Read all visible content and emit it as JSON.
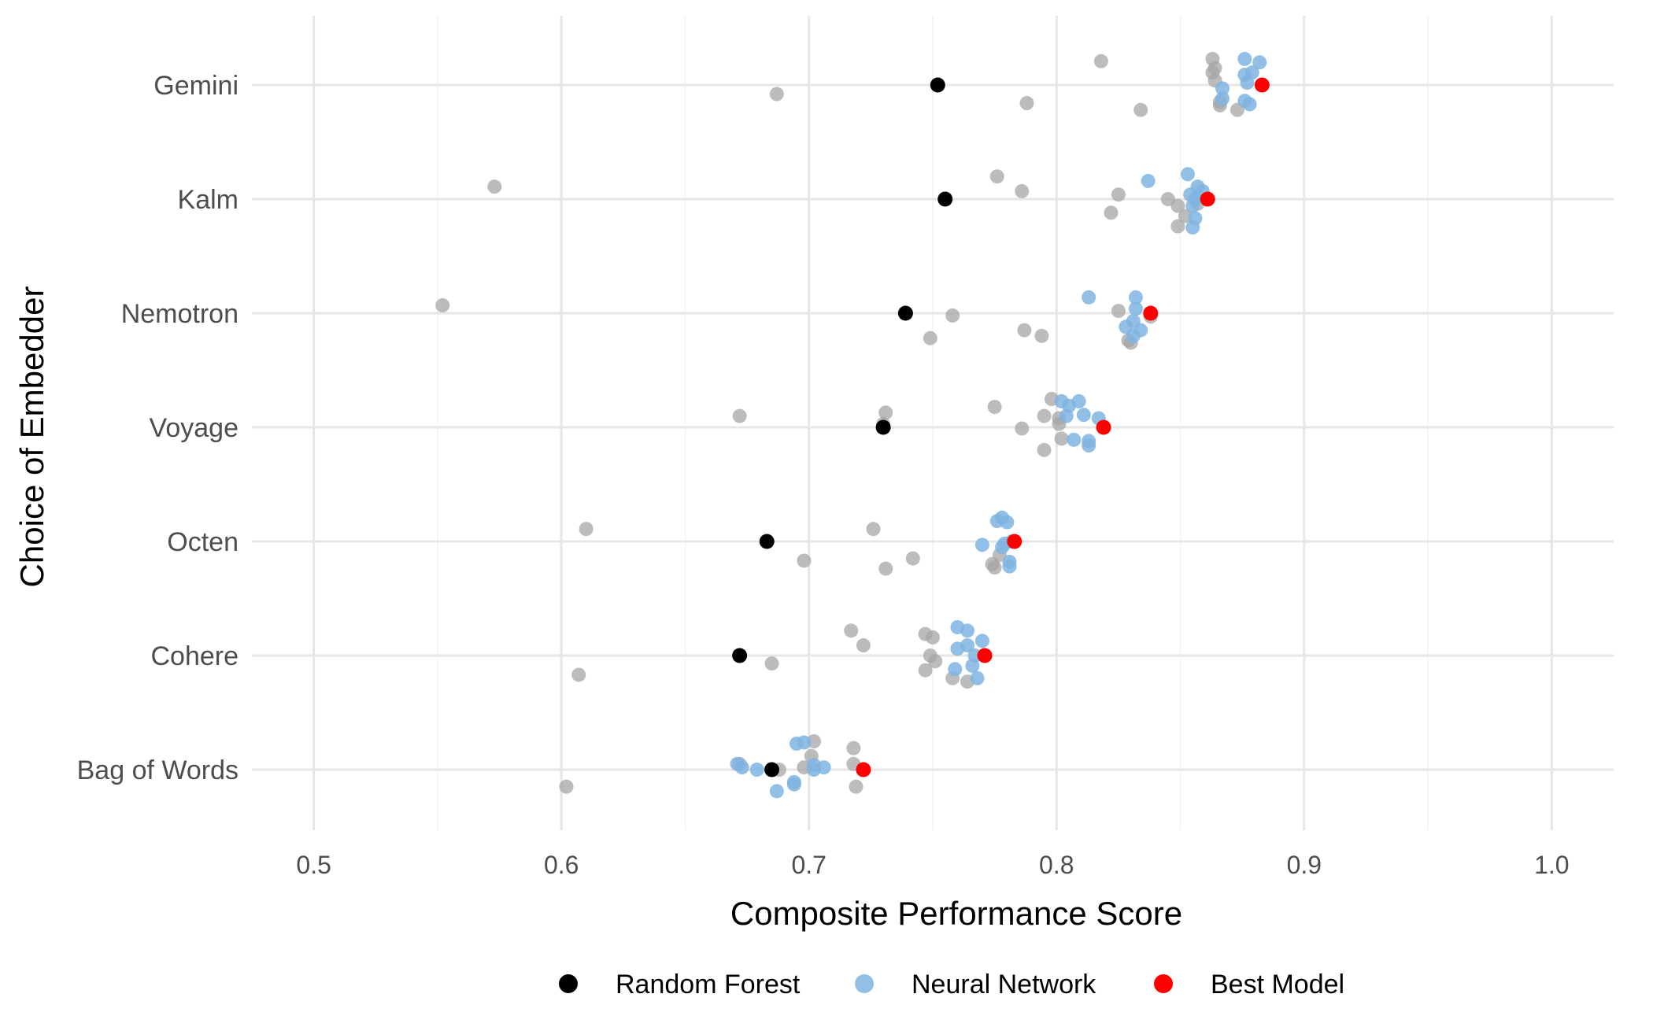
{
  "chart_data": {
    "type": "scatter",
    "orientation": "horizontal",
    "title": "",
    "xlabel": "Composite Performance Score",
    "ylabel": "Choice of Embedder",
    "xlim": [
      0.475,
      1.025
    ],
    "xticks": [
      0.5,
      0.6,
      0.7,
      0.8,
      0.9,
      1.0
    ],
    "xtick_labels": [
      "0.5",
      "0.6",
      "0.7",
      "0.8",
      "0.9",
      "1.0"
    ],
    "categories": [
      "Gemini",
      "Kalm",
      "Nemotron",
      "Voyage",
      "Octen",
      "Cohere",
      "Bag of Words"
    ],
    "grid": true,
    "legend_position": "bottom",
    "legend": [
      {
        "label": "Random Forest",
        "color": "#000000"
      },
      {
        "label": "Neural Network",
        "color": "#7fb4e0"
      },
      {
        "label": "Best Model",
        "color": "#ff0000"
      }
    ],
    "colors": {
      "other": "#a6a6a6",
      "random_forest": "#000000",
      "neural_network": "#7fb4e0",
      "best_model": "#ff0000"
    },
    "series": [
      {
        "group": "other",
        "points": [
          {
            "y": "Gemini",
            "x": 0.687,
            "j": 0.08
          },
          {
            "y": "Gemini",
            "x": 0.788,
            "j": 0.16
          },
          {
            "y": "Gemini",
            "x": 0.818,
            "j": -0.21
          },
          {
            "y": "Gemini",
            "x": 0.834,
            "j": 0.22
          },
          {
            "y": "Gemini",
            "x": 0.863,
            "j": -0.23
          },
          {
            "y": "Gemini",
            "x": 0.864,
            "j": -0.15
          },
          {
            "y": "Gemini",
            "x": 0.863,
            "j": -0.11
          },
          {
            "y": "Gemini",
            "x": 0.864,
            "j": -0.04
          },
          {
            "y": "Gemini",
            "x": 0.866,
            "j": 0.15
          },
          {
            "y": "Gemini",
            "x": 0.866,
            "j": 0.18
          },
          {
            "y": "Gemini",
            "x": 0.873,
            "j": 0.22
          },
          {
            "y": "Kalm",
            "x": 0.573,
            "j": -0.11
          },
          {
            "y": "Kalm",
            "x": 0.776,
            "j": -0.2
          },
          {
            "y": "Kalm",
            "x": 0.786,
            "j": -0.07
          },
          {
            "y": "Kalm",
            "x": 0.825,
            "j": -0.04
          },
          {
            "y": "Kalm",
            "x": 0.822,
            "j": 0.12
          },
          {
            "y": "Kalm",
            "x": 0.845,
            "j": 0.0
          },
          {
            "y": "Kalm",
            "x": 0.849,
            "j": 0.06
          },
          {
            "y": "Kalm",
            "x": 0.852,
            "j": 0.15
          },
          {
            "y": "Kalm",
            "x": 0.849,
            "j": 0.24
          },
          {
            "y": "Kalm",
            "x": 0.857,
            "j": 0.04
          },
          {
            "y": "Nemotron",
            "x": 0.552,
            "j": -0.07
          },
          {
            "y": "Nemotron",
            "x": 0.758,
            "j": 0.02
          },
          {
            "y": "Nemotron",
            "x": 0.749,
            "j": 0.22
          },
          {
            "y": "Nemotron",
            "x": 0.787,
            "j": 0.15
          },
          {
            "y": "Nemotron",
            "x": 0.794,
            "j": 0.2
          },
          {
            "y": "Nemotron",
            "x": 0.825,
            "j": -0.02
          },
          {
            "y": "Nemotron",
            "x": 0.829,
            "j": 0.24
          },
          {
            "y": "Nemotron",
            "x": 0.83,
            "j": 0.26
          },
          {
            "y": "Nemotron",
            "x": 0.838,
            "j": 0.03
          },
          {
            "y": "Voyage",
            "x": 0.672,
            "j": -0.1
          },
          {
            "y": "Voyage",
            "x": 0.731,
            "j": -0.13
          },
          {
            "y": "Voyage",
            "x": 0.775,
            "j": -0.18
          },
          {
            "y": "Voyage",
            "x": 0.786,
            "j": 0.01
          },
          {
            "y": "Voyage",
            "x": 0.798,
            "j": -0.25
          },
          {
            "y": "Voyage",
            "x": 0.795,
            "j": -0.1
          },
          {
            "y": "Voyage",
            "x": 0.801,
            "j": -0.08
          },
          {
            "y": "Voyage",
            "x": 0.801,
            "j": -0.03
          },
          {
            "y": "Voyage",
            "x": 0.802,
            "j": 0.1
          },
          {
            "y": "Voyage",
            "x": 0.795,
            "j": 0.2
          },
          {
            "y": "Voyage",
            "x": 0.73,
            "j": -0.03
          },
          {
            "y": "Octen",
            "x": 0.61,
            "j": -0.11
          },
          {
            "y": "Octen",
            "x": 0.726,
            "j": -0.11
          },
          {
            "y": "Octen",
            "x": 0.698,
            "j": 0.17
          },
          {
            "y": "Octen",
            "x": 0.731,
            "j": 0.24
          },
          {
            "y": "Octen",
            "x": 0.742,
            "j": 0.15
          },
          {
            "y": "Octen",
            "x": 0.774,
            "j": 0.2
          },
          {
            "y": "Octen",
            "x": 0.775,
            "j": 0.23
          },
          {
            "y": "Octen",
            "x": 0.777,
            "j": 0.12
          },
          {
            "y": "Cohere",
            "x": 0.607,
            "j": 0.17
          },
          {
            "y": "Cohere",
            "x": 0.685,
            "j": 0.07
          },
          {
            "y": "Cohere",
            "x": 0.717,
            "j": -0.22
          },
          {
            "y": "Cohere",
            "x": 0.722,
            "j": -0.09
          },
          {
            "y": "Cohere",
            "x": 0.747,
            "j": -0.19
          },
          {
            "y": "Cohere",
            "x": 0.75,
            "j": -0.16
          },
          {
            "y": "Cohere",
            "x": 0.749,
            "j": 0.0
          },
          {
            "y": "Cohere",
            "x": 0.751,
            "j": 0.05
          },
          {
            "y": "Cohere",
            "x": 0.747,
            "j": 0.13
          },
          {
            "y": "Cohere",
            "x": 0.758,
            "j": 0.2
          },
          {
            "y": "Cohere",
            "x": 0.764,
            "j": 0.23
          },
          {
            "y": "Bag of Words",
            "x": 0.602,
            "j": 0.15
          },
          {
            "y": "Bag of Words",
            "x": 0.672,
            "j": -0.05
          },
          {
            "y": "Bag of Words",
            "x": 0.688,
            "j": 0.0
          },
          {
            "y": "Bag of Words",
            "x": 0.698,
            "j": -0.02
          },
          {
            "y": "Bag of Words",
            "x": 0.701,
            "j": -0.12
          },
          {
            "y": "Bag of Words",
            "x": 0.702,
            "j": -0.25
          },
          {
            "y": "Bag of Words",
            "x": 0.718,
            "j": -0.19
          },
          {
            "y": "Bag of Words",
            "x": 0.718,
            "j": -0.05
          },
          {
            "y": "Bag of Words",
            "x": 0.719,
            "j": 0.15
          }
        ]
      },
      {
        "group": "random_forest",
        "name": "Random Forest",
        "points": [
          {
            "y": "Gemini",
            "x": 0.752,
            "j": 0.0
          },
          {
            "y": "Kalm",
            "x": 0.755,
            "j": 0.0
          },
          {
            "y": "Nemotron",
            "x": 0.739,
            "j": 0.0
          },
          {
            "y": "Voyage",
            "x": 0.73,
            "j": 0.0
          },
          {
            "y": "Octen",
            "x": 0.683,
            "j": 0.0
          },
          {
            "y": "Cohere",
            "x": 0.672,
            "j": 0.0
          },
          {
            "y": "Bag of Words",
            "x": 0.685,
            "j": 0.0
          }
        ]
      },
      {
        "group": "neural_network",
        "name": "Neural Network",
        "points": [
          {
            "y": "Gemini",
            "x": 0.876,
            "j": -0.23
          },
          {
            "y": "Gemini",
            "x": 0.882,
            "j": -0.2
          },
          {
            "y": "Gemini",
            "x": 0.879,
            "j": -0.11
          },
          {
            "y": "Gemini",
            "x": 0.876,
            "j": -0.09
          },
          {
            "y": "Gemini",
            "x": 0.877,
            "j": -0.02
          },
          {
            "y": "Gemini",
            "x": 0.867,
            "j": 0.03
          },
          {
            "y": "Gemini",
            "x": 0.867,
            "j": 0.12
          },
          {
            "y": "Gemini",
            "x": 0.876,
            "j": 0.14
          },
          {
            "y": "Gemini",
            "x": 0.878,
            "j": 0.17
          },
          {
            "y": "Kalm",
            "x": 0.837,
            "j": -0.16
          },
          {
            "y": "Kalm",
            "x": 0.853,
            "j": -0.22
          },
          {
            "y": "Kalm",
            "x": 0.857,
            "j": -0.11
          },
          {
            "y": "Kalm",
            "x": 0.859,
            "j": -0.07
          },
          {
            "y": "Kalm",
            "x": 0.854,
            "j": -0.04
          },
          {
            "y": "Kalm",
            "x": 0.856,
            "j": 0.0
          },
          {
            "y": "Kalm",
            "x": 0.855,
            "j": 0.06
          },
          {
            "y": "Kalm",
            "x": 0.856,
            "j": 0.17
          },
          {
            "y": "Kalm",
            "x": 0.855,
            "j": 0.25
          },
          {
            "y": "Nemotron",
            "x": 0.813,
            "j": -0.14
          },
          {
            "y": "Nemotron",
            "x": 0.832,
            "j": -0.14
          },
          {
            "y": "Nemotron",
            "x": 0.832,
            "j": -0.04
          },
          {
            "y": "Nemotron",
            "x": 0.831,
            "j": 0.07
          },
          {
            "y": "Nemotron",
            "x": 0.828,
            "j": 0.12
          },
          {
            "y": "Nemotron",
            "x": 0.834,
            "j": 0.15
          },
          {
            "y": "Nemotron",
            "x": 0.831,
            "j": 0.2
          },
          {
            "y": "Voyage",
            "x": 0.802,
            "j": -0.23
          },
          {
            "y": "Voyage",
            "x": 0.809,
            "j": -0.23
          },
          {
            "y": "Voyage",
            "x": 0.805,
            "j": -0.19
          },
          {
            "y": "Voyage",
            "x": 0.811,
            "j": -0.11
          },
          {
            "y": "Voyage",
            "x": 0.804,
            "j": -0.1
          },
          {
            "y": "Voyage",
            "x": 0.817,
            "j": -0.08
          },
          {
            "y": "Voyage",
            "x": 0.807,
            "j": 0.11
          },
          {
            "y": "Voyage",
            "x": 0.813,
            "j": 0.12
          },
          {
            "y": "Voyage",
            "x": 0.813,
            "j": 0.16
          },
          {
            "y": "Octen",
            "x": 0.776,
            "j": -0.18
          },
          {
            "y": "Octen",
            "x": 0.778,
            "j": -0.21
          },
          {
            "y": "Octen",
            "x": 0.78,
            "j": -0.17
          },
          {
            "y": "Octen",
            "x": 0.77,
            "j": 0.03
          },
          {
            "y": "Octen",
            "x": 0.779,
            "j": 0.02
          },
          {
            "y": "Octen",
            "x": 0.782,
            "j": 0.0
          },
          {
            "y": "Octen",
            "x": 0.778,
            "j": 0.05
          },
          {
            "y": "Octen",
            "x": 0.781,
            "j": 0.18
          },
          {
            "y": "Octen",
            "x": 0.781,
            "j": 0.22
          },
          {
            "y": "Cohere",
            "x": 0.76,
            "j": -0.25
          },
          {
            "y": "Cohere",
            "x": 0.764,
            "j": -0.22
          },
          {
            "y": "Cohere",
            "x": 0.77,
            "j": -0.13
          },
          {
            "y": "Cohere",
            "x": 0.764,
            "j": -0.09
          },
          {
            "y": "Cohere",
            "x": 0.76,
            "j": -0.06
          },
          {
            "y": "Cohere",
            "x": 0.767,
            "j": 0.0
          },
          {
            "y": "Cohere",
            "x": 0.766,
            "j": 0.09
          },
          {
            "y": "Cohere",
            "x": 0.759,
            "j": 0.12
          },
          {
            "y": "Cohere",
            "x": 0.768,
            "j": 0.2
          },
          {
            "y": "Bag of Words",
            "x": 0.695,
            "j": -0.23
          },
          {
            "y": "Bag of Words",
            "x": 0.698,
            "j": -0.24
          },
          {
            "y": "Bag of Words",
            "x": 0.671,
            "j": -0.05
          },
          {
            "y": "Bag of Words",
            "x": 0.673,
            "j": -0.02
          },
          {
            "y": "Bag of Words",
            "x": 0.679,
            "j": 0.0
          },
          {
            "y": "Bag of Words",
            "x": 0.702,
            "j": -0.04
          },
          {
            "y": "Bag of Words",
            "x": 0.706,
            "j": -0.02
          },
          {
            "y": "Bag of Words",
            "x": 0.702,
            "j": 0.0
          },
          {
            "y": "Bag of Words",
            "x": 0.694,
            "j": 0.11
          },
          {
            "y": "Bag of Words",
            "x": 0.694,
            "j": 0.13
          },
          {
            "y": "Bag of Words",
            "x": 0.687,
            "j": 0.19
          }
        ]
      },
      {
        "group": "best_model",
        "name": "Best Model",
        "points": [
          {
            "y": "Gemini",
            "x": 0.883,
            "j": 0.0
          },
          {
            "y": "Kalm",
            "x": 0.861,
            "j": 0.0
          },
          {
            "y": "Nemotron",
            "x": 0.838,
            "j": 0.0
          },
          {
            "y": "Voyage",
            "x": 0.819,
            "j": 0.0
          },
          {
            "y": "Octen",
            "x": 0.783,
            "j": 0.0
          },
          {
            "y": "Cohere",
            "x": 0.771,
            "j": 0.0
          },
          {
            "y": "Bag of Words",
            "x": 0.722,
            "j": 0.0
          }
        ]
      }
    ]
  }
}
